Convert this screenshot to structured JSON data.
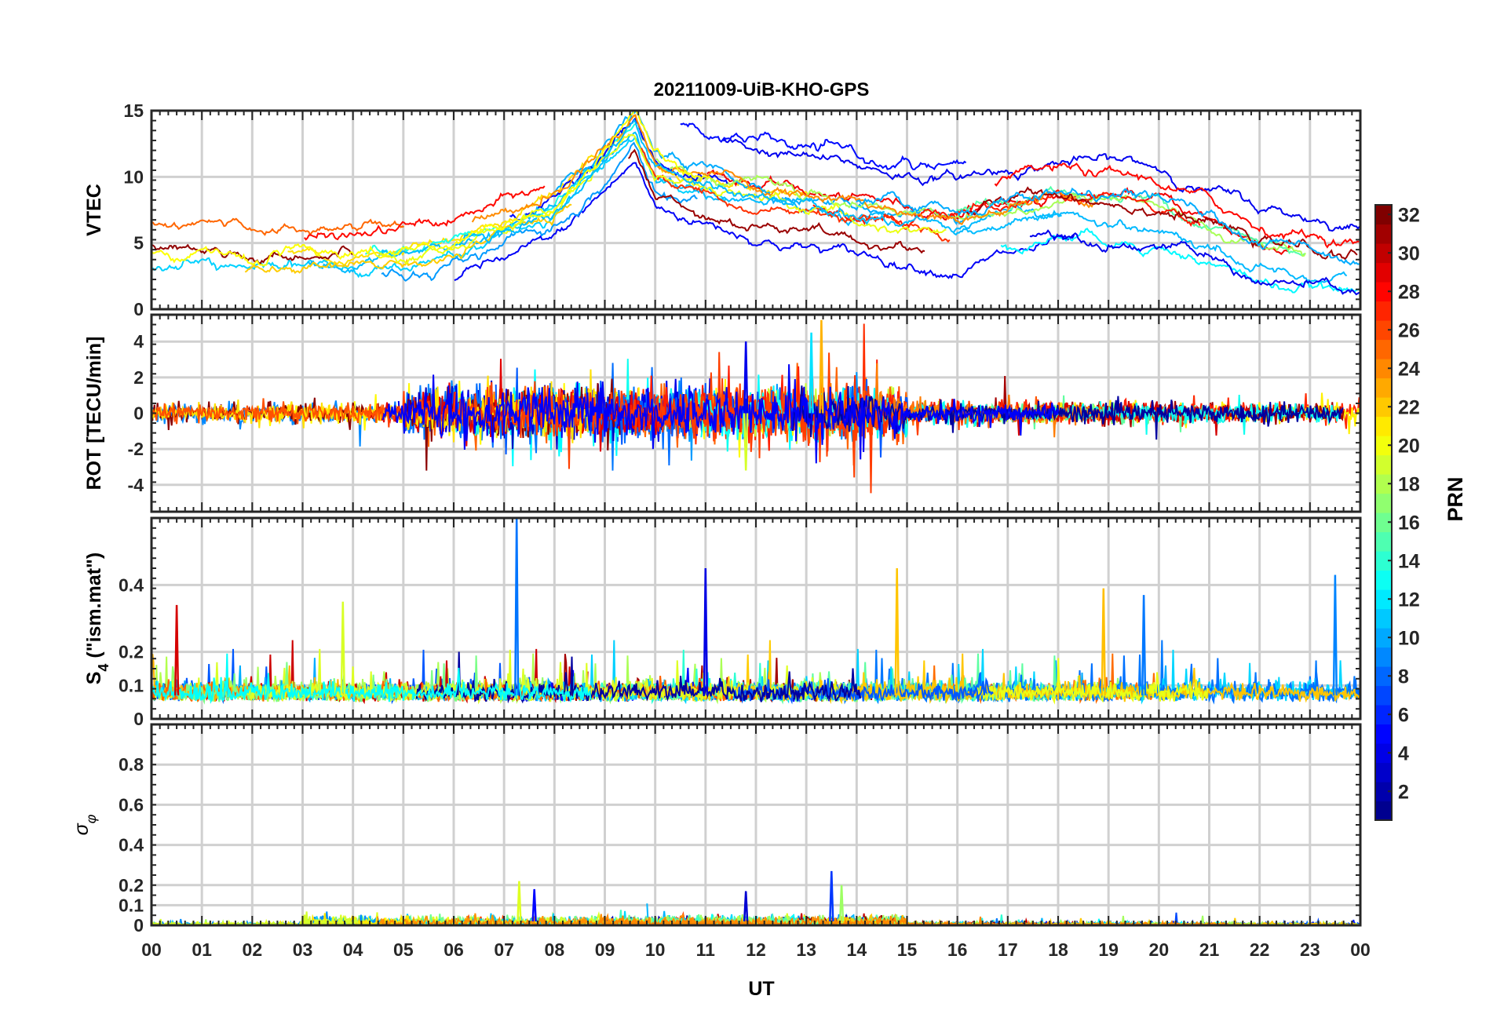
{
  "title": "20211009-UiB-KHO-GPS",
  "colorbar": {
    "label": "PRN",
    "range": [
      1,
      32
    ],
    "ticks": [
      "2",
      "4",
      "6",
      "8",
      "10",
      "12",
      "14",
      "16",
      "18",
      "20",
      "22",
      "24",
      "26",
      "28",
      "30",
      "32"
    ],
    "colors": [
      "#00008f",
      "#0000c8",
      "#0000ff",
      "#0040ff",
      "#0080ff",
      "#00bfff",
      "#00ffff",
      "#40ffbf",
      "#80ff80",
      "#bfff40",
      "#ffff00",
      "#ffbf00",
      "#ff8000",
      "#ff4000",
      "#ff0000",
      "#bf0000",
      "#800000"
    ]
  },
  "chart_data": [
    {
      "type": "line",
      "panel": "vtec",
      "ylabel": "VTEC",
      "ylim": [
        0,
        15
      ],
      "yticks": [
        "0",
        "5",
        "10",
        "15"
      ],
      "grid": true,
      "series_summary": [
        {
          "name": "PRN",
          "x": [
            0,
            2,
            4,
            6,
            8,
            9.6,
            10,
            12,
            14,
            16,
            18,
            20,
            22,
            24
          ],
          "y": [
            5.5,
            5,
            5,
            6,
            8.5,
            14.5,
            11,
            9,
            7.5,
            7,
            8.5,
            8,
            5,
            4
          ]
        }
      ]
    },
    {
      "type": "line",
      "panel": "rot",
      "ylabel": "ROT [TECU/min]",
      "ylim": [
        -5.5,
        5.5
      ],
      "yticks": [
        "-4",
        "-2",
        "0",
        "2",
        "4"
      ],
      "grid": true,
      "peaks": [
        {
          "x": 11.8,
          "y": 4
        },
        {
          "x": 11.8,
          "y": -3.2
        },
        {
          "x": 13.1,
          "y": 4.5
        },
        {
          "x": 13.3,
          "y": 5.2
        }
      ]
    },
    {
      "type": "line",
      "panel": "s4",
      "ylabel": "S",
      "ylabel_sub": "4",
      "ylabel_rest": " (\"ism.mat\")",
      "ylim": [
        0,
        0.6
      ],
      "yticks": [
        "0",
        "0.1",
        "0.2",
        "0.4"
      ],
      "grid": true,
      "peaks": [
        {
          "x": 0.5,
          "y": 0.34
        },
        {
          "x": 3.8,
          "y": 0.35
        },
        {
          "x": 7.25,
          "y": 0.6
        },
        {
          "x": 11,
          "y": 0.45
        },
        {
          "x": 14.8,
          "y": 0.45
        },
        {
          "x": 18.9,
          "y": 0.39
        },
        {
          "x": 19.7,
          "y": 0.37
        },
        {
          "x": 23.5,
          "y": 0.43
        }
      ]
    },
    {
      "type": "line",
      "panel": "sigma",
      "ylabel": "σ",
      "ylabel_sub": "φ",
      "ylim": [
        0,
        1
      ],
      "yticks": [
        "0",
        "0.1",
        "0.2",
        "0.4",
        "0.6",
        "0.8"
      ],
      "grid": true,
      "peaks": [
        {
          "x": 7.3,
          "y": 0.22
        },
        {
          "x": 7.6,
          "y": 0.18
        },
        {
          "x": 11.8,
          "y": 0.17
        },
        {
          "x": 13.5,
          "y": 0.27
        },
        {
          "x": 13.7,
          "y": 0.2
        }
      ]
    }
  ],
  "xaxis": {
    "label": "UT",
    "ticks": [
      "00",
      "01",
      "02",
      "03",
      "04",
      "05",
      "06",
      "07",
      "08",
      "09",
      "10",
      "11",
      "12",
      "13",
      "14",
      "15",
      "16",
      "17",
      "18",
      "19",
      "20",
      "21",
      "22",
      "23",
      "00"
    ],
    "range": [
      0,
      24
    ]
  }
}
